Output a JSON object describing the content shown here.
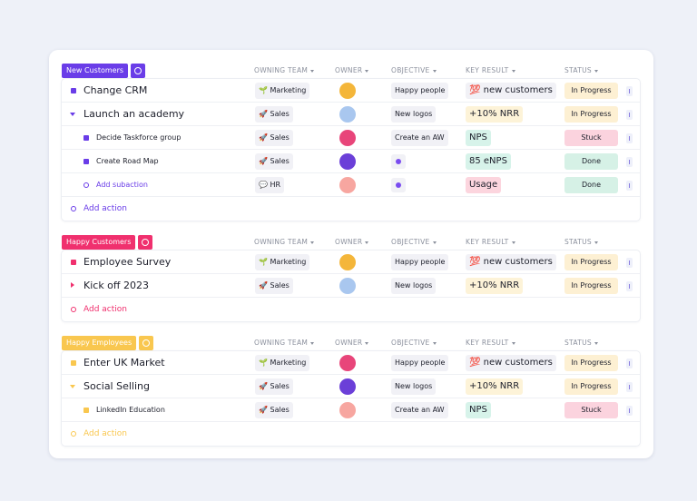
{
  "columns": [
    "OWNING TEAM",
    "OWNER",
    "OBJECTIVE",
    "KEY RESULT",
    "STATUS"
  ],
  "groups": [
    {
      "tag": "New Customers",
      "color": "#6a3de8",
      "add_action": "Add action",
      "rows": [
        {
          "name": "Change CRM",
          "level": 0,
          "marker": "square",
          "team": "🌱 Marketing",
          "objective": "Happy people",
          "key_result": "💯 new customers",
          "key_result_color": "#f1f1f6",
          "status": "In Progress",
          "status_color": "#fdf0d3"
        },
        {
          "name": "Launch an academy",
          "level": 0,
          "marker": "caret-down",
          "team": "🚀 Sales",
          "objective": "New logos",
          "key_result": "+10% NRR",
          "key_result_color": "#fdf3d8",
          "status": "In Progress",
          "status_color": "#fdf0d3"
        },
        {
          "name": "Decide Taskforce group",
          "level": 1,
          "marker": "square",
          "team": "🚀 Sales",
          "objective": "Create an AW",
          "key_result": "NPS",
          "key_result_color": "#d7f3ea",
          "status": "Stuck",
          "status_color": "#fbd3de"
        },
        {
          "name": "Create Road Map",
          "level": 1,
          "marker": "square",
          "team": "🚀 Sales",
          "objective": null,
          "key_result": "85 eNPS",
          "key_result_color": "#d7f3ea",
          "status": "Done",
          "status_color": "#d6f1e6"
        },
        {
          "name": "Add subaction",
          "level": 1,
          "marker": "plus",
          "team": "💬 HR",
          "objective": null,
          "key_result": "Usage",
          "key_result_color": "#fcd5de",
          "status": "Done",
          "status_color": "#d6f1e6"
        }
      ]
    },
    {
      "tag": "Happy Customers",
      "color": "#f0306e",
      "add_action": "Add action",
      "rows": [
        {
          "name": "Employee Survey",
          "level": 0,
          "marker": "square",
          "team": "🌱 Marketing",
          "objective": "Happy people",
          "key_result": "💯 new customers",
          "key_result_color": "#f1f1f6",
          "status": "In Progress",
          "status_color": "#fdf0d3"
        },
        {
          "name": "Kick off 2023",
          "level": 0,
          "marker": "caret-right",
          "team": "🚀 Sales",
          "objective": "New logos",
          "key_result": "+10% NRR",
          "key_result_color": "#fdf3d8",
          "status": "In Progress",
          "status_color": "#fdf0d3"
        }
      ]
    },
    {
      "tag": "Happy Employees",
      "color": "#f9c74f",
      "add_action": "Add action",
      "rows": [
        {
          "name": "Enter UK Market",
          "level": 0,
          "marker": "square",
          "team": "🌱 Marketing",
          "objective": "Happy people",
          "key_result": "💯 new customers",
          "key_result_color": "#f1f1f6",
          "status": "In Progress",
          "status_color": "#fdf0d3"
        },
        {
          "name": "Social Selling",
          "level": 0,
          "marker": "caret-down",
          "team": "🚀 Sales",
          "objective": "New logos",
          "key_result": "+10% NRR",
          "key_result_color": "#fdf3d8",
          "status": "In Progress",
          "status_color": "#fdf0d3"
        },
        {
          "name": "LinkedIn Education",
          "level": 1,
          "marker": "square",
          "team": "🚀 Sales",
          "objective": "Create an AW",
          "key_result": "NPS",
          "key_result_color": "#d7f3ea",
          "status": "Stuck",
          "status_color": "#fbd3de"
        }
      ]
    }
  ]
}
